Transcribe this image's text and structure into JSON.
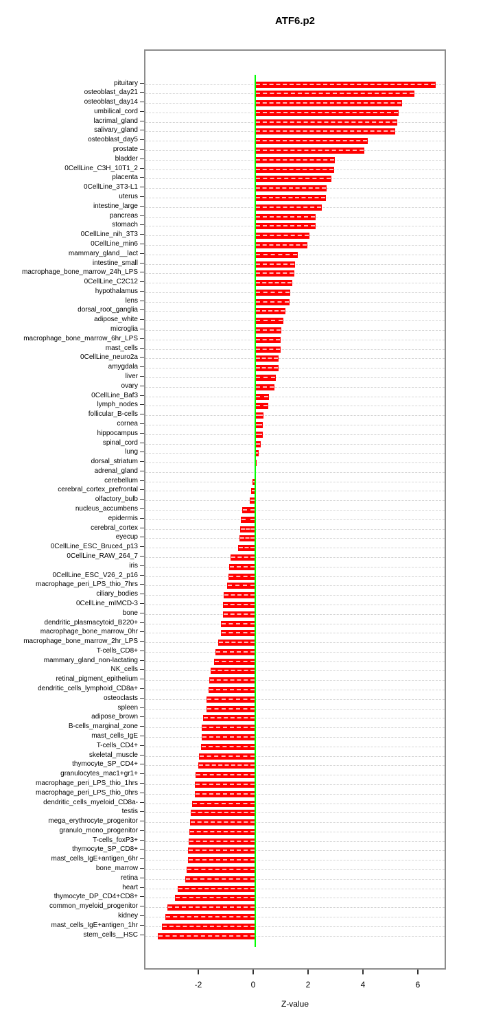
{
  "title": "ATF6.p2",
  "chart_data": {
    "type": "bar",
    "orientation": "horizontal",
    "title": "ATF6.p2",
    "xlabel": "Z-value",
    "ylabel": "",
    "xlim": [
      -4,
      7
    ],
    "x_ticks": [
      -2,
      0,
      2,
      4,
      6
    ],
    "grid": true,
    "legend": "none",
    "bar_color": "#ff0000",
    "bar_dash_color": "rgba(255,255,255,0.75)",
    "zero_line_color": "#00ff00",
    "grid_color": "#d4d4d4",
    "box_border_color": "#8c8c8c",
    "categories": [
      "pituitary",
      "osteoblast_day21",
      "osteoblast_day14",
      "umbilical_cord",
      "lacrimal_gland",
      "salivary_gland",
      "osteoblast_day5",
      "prostate",
      "bladder",
      "0CellLine_C3H_10T1_2",
      "placenta",
      "0CellLine_3T3-L1",
      "uterus",
      "intestine_large",
      "pancreas",
      "stomach",
      "0CellLine_nih_3T3",
      "0CellLine_min6",
      "mammary_gland__lact",
      "intestine_small",
      "macrophage_bone_marrow_24h_LPS",
      "0CellLine_C2C12",
      "hypothalamus",
      "lens",
      "dorsal_root_ganglia",
      "adipose_white",
      "microglia",
      "macrophage_bone_marrow_6hr_LPS",
      "mast_cells",
      "0CellLine_neuro2a",
      "amygdala",
      "liver",
      "ovary",
      "0CellLine_Baf3",
      "lymph_nodes",
      "follicular_B-cells",
      "cornea",
      "hippocampus",
      "spinal_cord",
      "lung",
      "dorsal_striatum",
      "adrenal_gland",
      "cerebellum",
      "cerebral_cortex_prefrontal",
      "olfactory_bulb",
      "nucleus_accumbens",
      "epidermis",
      "cerebral_cortex",
      "eyecup",
      "0CellLine_ESC_Bruce4_p13",
      "0CellLine_RAW_264_7",
      "iris",
      "0CellLine_ESC_V26_2_p16",
      "macrophage_peri_LPS_thio_7hrs",
      "ciliary_bodies",
      "0CellLine_mIMCD-3",
      "bone",
      "dendritic_plasmacytoid_B220+",
      "macrophage_bone_marrow_0hr",
      "macrophage_bone_marrow_2hr_LPS",
      "T-cells_CD8+",
      "mammary_gland_non-lactating",
      "NK_cells",
      "retinal_pigment_epithelium",
      "dendritic_cells_lymphoid_CD8a+",
      "osteoclasts",
      "spleen",
      "adipose_brown",
      "B-cells_marginal_zone",
      "mast_cells_IgE",
      "T-cells_CD4+",
      "skeletal_muscle",
      "thymocyte_SP_CD4+",
      "granulocytes_mac1+gr1+",
      "macrophage_peri_LPS_thio_1hrs",
      "macrophage_peri_LPS_thio_0hrs",
      "dendritic_cells_myeloid_CD8a-",
      "testis",
      "mega_erythrocyte_progenitor",
      "granulo_mono_progenitor",
      "T-cells_foxP3+",
      "thymocyte_SP_CD8+",
      "mast_cells_IgE+antigen_6hr",
      "bone_marrow",
      "retina",
      "heart",
      "thymocyte_DP_CD4+CD8+",
      "common_myeloid_progenitor",
      "kidney",
      "mast_cells_IgE+antigen_1hr",
      "stem_cells__HSC"
    ],
    "values": [
      6.58,
      5.79,
      5.35,
      5.22,
      5.18,
      5.09,
      4.11,
      3.97,
      2.89,
      2.88,
      2.78,
      2.59,
      2.57,
      2.42,
      2.21,
      2.19,
      1.97,
      1.89,
      1.54,
      1.46,
      1.42,
      1.35,
      1.28,
      1.24,
      1.1,
      1.03,
      0.94,
      0.93,
      0.92,
      0.86,
      0.84,
      0.75,
      0.71,
      0.5,
      0.48,
      0.31,
      0.28,
      0.27,
      0.21,
      0.12,
      0.04,
      0.01,
      -0.1,
      -0.15,
      -0.2,
      -0.48,
      -0.53,
      -0.54,
      -0.57,
      -0.63,
      -0.91,
      -0.96,
      -0.97,
      -1.02,
      -1.16,
      -1.17,
      -1.18,
      -1.25,
      -1.26,
      -1.36,
      -1.45,
      -1.51,
      -1.63,
      -1.68,
      -1.71,
      -1.77,
      -1.78,
      -1.89,
      -1.94,
      -1.96,
      -1.98,
      -2.04,
      -2.08,
      -2.18,
      -2.19,
      -2.21,
      -2.31,
      -2.36,
      -2.38,
      -2.39,
      -2.42,
      -2.44,
      -2.45,
      -2.49,
      -2.55,
      -2.83,
      -2.93,
      -3.21,
      -3.28,
      -3.41,
      -3.55
    ]
  }
}
